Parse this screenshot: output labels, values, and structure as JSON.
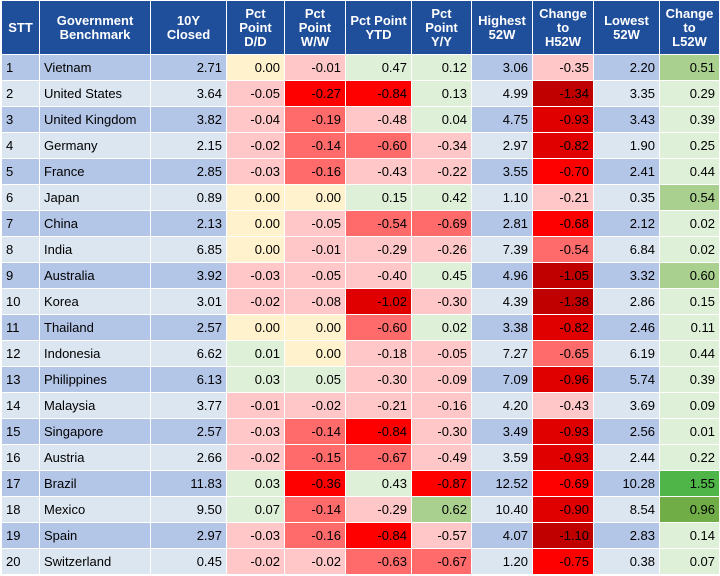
{
  "table": {
    "headers": [
      "STT",
      "Government\nBenchmark",
      "10Y Closed",
      "Pct\nPoint\nD/D",
      "Pct\nPoint\nW/W",
      "Pct Point\nYTD",
      "Pct\nPoint\nY/Y",
      "Highest\n52W",
      "Change\nto\nH52W",
      "Lowest\n52W",
      "Change\nto\nL52W"
    ],
    "rows": [
      {
        "stt": "1",
        "name": "Vietnam",
        "closed": "2.71",
        "dd": "0.00",
        "ww": "-0.01",
        "ytd": "0.47",
        "yy": "0.12",
        "h52": "3.06",
        "ch52": "-0.35",
        "l52": "2.20",
        "cl52": "0.51"
      },
      {
        "stt": "2",
        "name": "United States",
        "closed": "3.64",
        "dd": "-0.05",
        "ww": "-0.27",
        "ytd": "-0.84",
        "yy": "0.13",
        "h52": "4.99",
        "ch52": "-1.34",
        "l52": "3.35",
        "cl52": "0.29"
      },
      {
        "stt": "3",
        "name": "United Kingdom",
        "closed": "3.82",
        "dd": "-0.04",
        "ww": "-0.19",
        "ytd": "-0.48",
        "yy": "0.04",
        "h52": "4.75",
        "ch52": "-0.93",
        "l52": "3.43",
        "cl52": "0.39"
      },
      {
        "stt": "4",
        "name": "Germany",
        "closed": "2.15",
        "dd": "-0.02",
        "ww": "-0.14",
        "ytd": "-0.60",
        "yy": "-0.34",
        "h52": "2.97",
        "ch52": "-0.82",
        "l52": "1.90",
        "cl52": "0.25"
      },
      {
        "stt": "5",
        "name": "France",
        "closed": "2.85",
        "dd": "-0.03",
        "ww": "-0.16",
        "ytd": "-0.43",
        "yy": "-0.22",
        "h52": "3.55",
        "ch52": "-0.70",
        "l52": "2.41",
        "cl52": "0.44"
      },
      {
        "stt": "6",
        "name": "Japan",
        "closed": "0.89",
        "dd": "0.00",
        "ww": "0.00",
        "ytd": "0.15",
        "yy": "0.42",
        "h52": "1.10",
        "ch52": "-0.21",
        "l52": "0.35",
        "cl52": "0.54"
      },
      {
        "stt": "7",
        "name": "China",
        "closed": "2.13",
        "dd": "0.00",
        "ww": "-0.05",
        "ytd": "-0.54",
        "yy": "-0.69",
        "h52": "2.81",
        "ch52": "-0.68",
        "l52": "2.12",
        "cl52": "0.02"
      },
      {
        "stt": "8",
        "name": "India",
        "closed": "6.85",
        "dd": "0.00",
        "ww": "-0.01",
        "ytd": "-0.29",
        "yy": "-0.26",
        "h52": "7.39",
        "ch52": "-0.54",
        "l52": "6.84",
        "cl52": "0.02"
      },
      {
        "stt": "9",
        "name": "Australia",
        "closed": "3.92",
        "dd": "-0.03",
        "ww": "-0.05",
        "ytd": "-0.40",
        "yy": "0.45",
        "h52": "4.96",
        "ch52": "-1.05",
        "l52": "3.32",
        "cl52": "0.60"
      },
      {
        "stt": "10",
        "name": "Korea",
        "closed": "3.01",
        "dd": "-0.02",
        "ww": "-0.08",
        "ytd": "-1.02",
        "yy": "-0.30",
        "h52": "4.39",
        "ch52": "-1.38",
        "l52": "2.86",
        "cl52": "0.15"
      },
      {
        "stt": "11",
        "name": "Thailand",
        "closed": "2.57",
        "dd": "0.00",
        "ww": "0.00",
        "ytd": "-0.60",
        "yy": "0.02",
        "h52": "3.38",
        "ch52": "-0.82",
        "l52": "2.46",
        "cl52": "0.11"
      },
      {
        "stt": "12",
        "name": "Indonesia",
        "closed": "6.62",
        "dd": "0.01",
        "ww": "0.00",
        "ytd": "-0.18",
        "yy": "-0.05",
        "h52": "7.27",
        "ch52": "-0.65",
        "l52": "6.19",
        "cl52": "0.44"
      },
      {
        "stt": "13",
        "name": "Philippines",
        "closed": "6.13",
        "dd": "0.03",
        "ww": "0.05",
        "ytd": "-0.30",
        "yy": "-0.09",
        "h52": "7.09",
        "ch52": "-0.96",
        "l52": "5.74",
        "cl52": "0.39"
      },
      {
        "stt": "14",
        "name": "Malaysia",
        "closed": "3.77",
        "dd": "-0.01",
        "ww": "-0.02",
        "ytd": "-0.21",
        "yy": "-0.16",
        "h52": "4.20",
        "ch52": "-0.43",
        "l52": "3.69",
        "cl52": "0.09"
      },
      {
        "stt": "15",
        "name": "Singapore",
        "closed": "2.57",
        "dd": "-0.03",
        "ww": "-0.14",
        "ytd": "-0.84",
        "yy": "-0.30",
        "h52": "3.49",
        "ch52": "-0.93",
        "l52": "2.56",
        "cl52": "0.01"
      },
      {
        "stt": "16",
        "name": "Austria",
        "closed": "2.66",
        "dd": "-0.02",
        "ww": "-0.15",
        "ytd": "-0.67",
        "yy": "-0.49",
        "h52": "3.59",
        "ch52": "-0.93",
        "l52": "2.44",
        "cl52": "0.22"
      },
      {
        "stt": "17",
        "name": "Brazil",
        "closed": "11.83",
        "dd": "0.03",
        "ww": "-0.36",
        "ytd": "0.43",
        "yy": "-0.87",
        "h52": "12.52",
        "ch52": "-0.69",
        "l52": "10.28",
        "cl52": "1.55"
      },
      {
        "stt": "18",
        "name": "Mexico",
        "closed": "9.50",
        "dd": "0.07",
        "ww": "-0.14",
        "ytd": "-0.29",
        "yy": "0.62",
        "h52": "10.40",
        "ch52": "-0.90",
        "l52": "8.54",
        "cl52": "0.96"
      },
      {
        "stt": "19",
        "name": "Spain",
        "closed": "2.97",
        "dd": "-0.03",
        "ww": "-0.16",
        "ytd": "-0.84",
        "yy": "-0.57",
        "h52": "4.07",
        "ch52": "-1.10",
        "l52": "2.83",
        "cl52": "0.14"
      },
      {
        "stt": "20",
        "name": "Switzerland",
        "closed": "0.45",
        "dd": "-0.02",
        "ww": "-0.02",
        "ytd": "-0.63",
        "yy": "-0.67",
        "h52": "1.20",
        "ch52": "-0.75",
        "l52": "0.38",
        "cl52": "0.07"
      }
    ]
  }
}
